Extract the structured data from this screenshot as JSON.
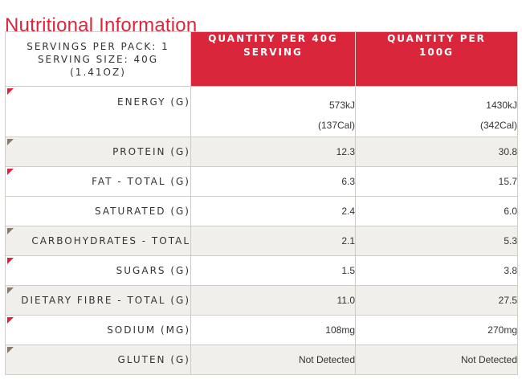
{
  "title": "Nutritional Information",
  "header": {
    "servings_line1": "SERVINGS PER PACK: 1",
    "servings_line2": "SERVING SIZE: 40G",
    "servings_line3": "(1.41OZ)",
    "col1_line1": "QUANTITY PER 40G",
    "col1_line2": "SERVING",
    "col2_line1": "QUANTITY PER",
    "col2_line2": "100G"
  },
  "colors": {
    "accent": "#d9263a",
    "marker_red": "#d9263a",
    "marker_brown": "#8a7a6a"
  },
  "rows": [
    {
      "label": "ENERGY (G)",
      "per_serving": "573kJ",
      "per_serving_sub": "(137Cal)",
      "per_100g": "1430kJ",
      "per_100g_sub": "(342Cal)",
      "marker": "red"
    },
    {
      "label": "PROTEIN (G)",
      "per_serving": "12.3",
      "per_100g": "30.8",
      "marker": "brown"
    },
    {
      "label": "FAT - TOTAL (G)",
      "per_serving": "6.3",
      "per_100g": "15.7",
      "marker": "red"
    },
    {
      "label": "SATURATED (G)",
      "per_serving": "2.4",
      "per_100g": "6.0",
      "marker": "none"
    },
    {
      "label": "CARBOHYDRATES - TOTAL",
      "per_serving": "2.1",
      "per_100g": "5.3",
      "marker": "brown"
    },
    {
      "label": "SUGARS (G)",
      "per_serving": "1.5",
      "per_100g": "3.8",
      "marker": "red"
    },
    {
      "label": "DIETARY FIBRE - TOTAL (G)",
      "per_serving": "11.0",
      "per_100g": "27.5",
      "marker": "brown"
    },
    {
      "label": "SODIUM (MG)",
      "per_serving": "108mg",
      "per_100g": "270mg",
      "marker": "red"
    },
    {
      "label": "GLUTEN (G)",
      "per_serving": "Not Detected",
      "per_100g": "Not Detected",
      "marker": "brown"
    }
  ]
}
